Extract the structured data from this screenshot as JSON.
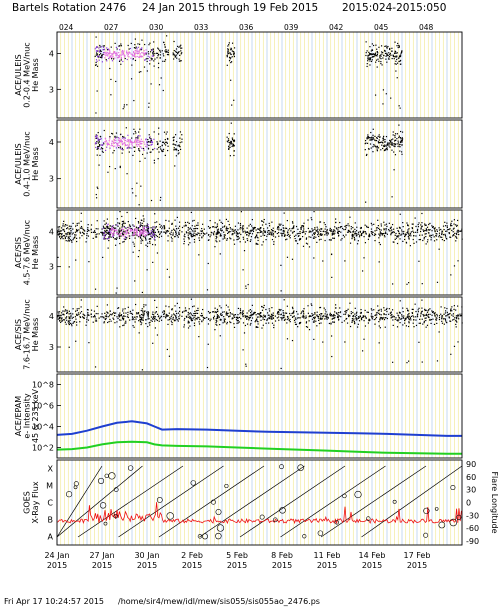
{
  "header": {
    "title_left": "Bartels Rotation 2476",
    "title_mid": "24 Jan 2015 through 19 Feb 2015",
    "title_right": "2015:024-2015:050"
  },
  "footer": {
    "timestamp": "Fri Apr 17 10:24:57 2015",
    "path": "/home/sir4/mew/idl/mew/sis055/sis055ao_2476.ps"
  },
  "colors": {
    "scatter": "#000000",
    "dense": "#8a3ad8",
    "core": "#e070e0",
    "grid_yellow": "#f0e68c",
    "grid_blue": "#9ec2ea",
    "epam_high": "#1f3fd0",
    "epam_low": "#22d022",
    "xray": "#ee1111"
  },
  "chart_data": {
    "x_axis": {
      "doy_ticks": [
        "024",
        "027",
        "030",
        "033",
        "036",
        "039",
        "042",
        "045",
        "048"
      ],
      "date_labels": [
        {
          "day": "24 Jan",
          "year": "2015"
        },
        {
          "day": "27 Jan",
          "year": "2015"
        },
        {
          "day": "30 Jan",
          "year": "2015"
        },
        {
          "day": "2 Feb",
          "year": "2015"
        },
        {
          "day": "5 Feb",
          "year": "2015"
        },
        {
          "day": "8 Feb",
          "year": "2015"
        },
        {
          "day": "11 Feb",
          "year": "2015"
        },
        {
          "day": "14 Feb",
          "year": "2015"
        },
        {
          "day": "17 Feb",
          "year": "2015"
        }
      ],
      "range_days": [
        0,
        27
      ]
    },
    "panels": [
      {
        "type": "scatter",
        "ylabel_lines": [
          "ACE/ULEIS",
          "0.2-0.4 MeV/nuc",
          "He Mass"
        ],
        "y_ticks": [
          "4",
          "3"
        ],
        "y_range": [
          2.2,
          4.6
        ],
        "band_center": 4.0,
        "bursts": [
          {
            "start_day": 2.5,
            "end_day": 6.5,
            "strength": 1.0
          },
          {
            "start_day": 6.6,
            "end_day": 7.4,
            "strength": 0.35
          },
          {
            "start_day": 7.7,
            "end_day": 8.3,
            "strength": 0.3
          },
          {
            "start_day": 11.3,
            "end_day": 11.8,
            "strength": 0.6
          },
          {
            "start_day": 20.5,
            "end_day": 23.0,
            "strength": 0.8
          }
        ]
      },
      {
        "type": "scatter",
        "ylabel_lines": [
          "ACE/ULEIS",
          "0.4-1.0 MeV/nuc",
          "He Mass"
        ],
        "y_ticks": [
          "4",
          "3"
        ],
        "y_range": [
          2.2,
          4.6
        ],
        "band_center": 4.0,
        "bursts": [
          {
            "start_day": 2.5,
            "end_day": 6.5,
            "strength": 1.0
          },
          {
            "start_day": 6.6,
            "end_day": 7.4,
            "strength": 0.35
          },
          {
            "start_day": 7.7,
            "end_day": 8.3,
            "strength": 0.3
          },
          {
            "start_day": 11.3,
            "end_day": 11.8,
            "strength": 0.6
          },
          {
            "start_day": 20.5,
            "end_day": 23.0,
            "strength": 0.8
          }
        ]
      },
      {
        "type": "scatter",
        "ylabel_lines": [
          "ACE/SIS",
          "4.5-7.6 MeV/nuc",
          "He Mass"
        ],
        "y_ticks": [
          "4",
          "3"
        ],
        "y_range": [
          2.2,
          4.6
        ],
        "band_center": 4.0,
        "bursts": [
          {
            "start_day": 0,
            "end_day": 27,
            "strength": 0.7
          },
          {
            "start_day": 3.0,
            "end_day": 6.5,
            "strength": 1.0
          }
        ]
      },
      {
        "type": "scatter",
        "ylabel_lines": [
          "ACE/SIS",
          "7.6-16.7 MeV/nuc",
          "He Mass"
        ],
        "y_ticks": [
          "4",
          "3"
        ],
        "y_range": [
          2.2,
          4.6
        ],
        "band_center": 4.0,
        "bursts": [
          {
            "start_day": 0,
            "end_day": 27,
            "strength": 0.65
          }
        ]
      },
      {
        "type": "line",
        "ylabel_lines": [
          "ACE/EPAM",
          "e- Intensity",
          "45 & 235 keV"
        ],
        "y_scale": "log",
        "y_ticks": [
          "10^8",
          "10^6",
          "10^4",
          "10^2"
        ],
        "y_range_log10": [
          1,
          9
        ],
        "series": [
          {
            "name": "",
            "color_key": "epam_high",
            "x": [
              0,
              1,
              2,
              3,
              4,
              5,
              6,
              6.5,
              7,
              8,
              10,
              12,
              14,
              16,
              18,
              20,
              22,
              24,
              26,
              27
            ],
            "log10_y": [
              3.2,
              3.3,
              3.6,
              4.0,
              4.35,
              4.5,
              4.3,
              4.0,
              3.7,
              3.75,
              3.7,
              3.6,
              3.5,
              3.45,
              3.4,
              3.35,
              3.3,
              3.2,
              3.1,
              3.1
            ]
          },
          {
            "name": "",
            "color_key": "epam_low",
            "x": [
              0,
              1,
              2,
              3,
              4,
              5,
              6,
              6.5,
              7,
              8,
              10,
              12,
              14,
              16,
              18,
              20,
              22,
              24,
              26,
              27
            ],
            "log10_y": [
              1.8,
              1.85,
              2.0,
              2.3,
              2.5,
              2.55,
              2.5,
              2.3,
              2.2,
              2.15,
              2.1,
              2.0,
              1.9,
              1.8,
              1.7,
              1.6,
              1.5,
              1.45,
              1.4,
              1.4
            ]
          }
        ]
      },
      {
        "type": "xray",
        "ylabel_lines": [
          "GOES",
          "X-Ray Flux"
        ],
        "y_ticks_left": [
          "X",
          "M",
          "C",
          "B",
          "A"
        ],
        "y_ticks_right": [
          "90",
          "60",
          "30",
          "0",
          "-30",
          "-60",
          "-90"
        ],
        "y2label": "Flare Longitude"
      }
    ]
  }
}
